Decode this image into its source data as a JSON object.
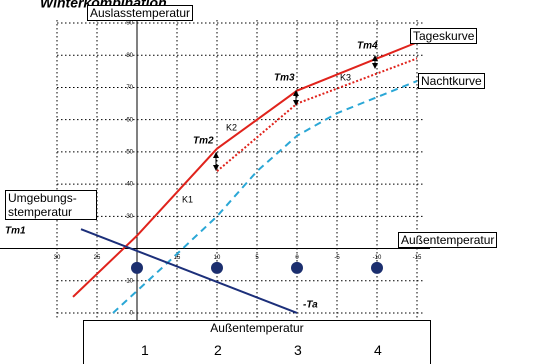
{
  "chart_data": {
    "type": "line",
    "title": "Winterkombination",
    "y_label": "Auslasstemperatur",
    "x_label": "Außentemperatur",
    "xlim": [
      36,
      -16
    ],
    "ylim": [
      -2,
      92
    ],
    "xticks": [
      30,
      25,
      15,
      10,
      5,
      0,
      -5,
      -10,
      -15
    ],
    "yticks": [
      0,
      10,
      30,
      40,
      50,
      60,
      70,
      80,
      90
    ],
    "grid": true,
    "series": [
      {
        "name": "Tageskurve",
        "color": "#e0231c",
        "style": "solid",
        "x": [
          28,
          20,
          10,
          0,
          -10,
          -15
        ],
        "values": [
          5,
          24,
          51,
          69,
          79,
          84
        ]
      },
      {
        "color": "#e0231c",
        "style": "dotted",
        "x": [
          10,
          0,
          -15
        ],
        "values": [
          44,
          65,
          79
        ]
      },
      {
        "name": "Nachtkurve",
        "color": "#2aa7d6",
        "style": "dashed",
        "x": [
          23,
          16,
          10,
          5,
          0,
          -5,
          -10,
          -15
        ],
        "values": [
          0,
          16,
          30,
          44,
          55,
          62,
          67,
          72
        ]
      },
      {
        "name": "Umgebungs-stemperatur",
        "color": "#1c2f7a",
        "style": "solid",
        "x": [
          27,
          0
        ],
        "values": [
          26,
          0
        ]
      },
      {
        "color": "#1b2e6e",
        "style": "dots",
        "x": [
          20,
          10,
          0,
          -10
        ],
        "values": [
          14,
          14,
          14,
          14
        ]
      }
    ],
    "annotations": [
      "Tm1",
      "Tm2",
      "Tm3",
      "Tm4",
      "K1",
      "K2",
      "K3",
      "-Ta"
    ]
  },
  "table": {
    "title": "Außentemperatur",
    "columns": [
      "1",
      "2",
      "3",
      "4"
    ]
  }
}
